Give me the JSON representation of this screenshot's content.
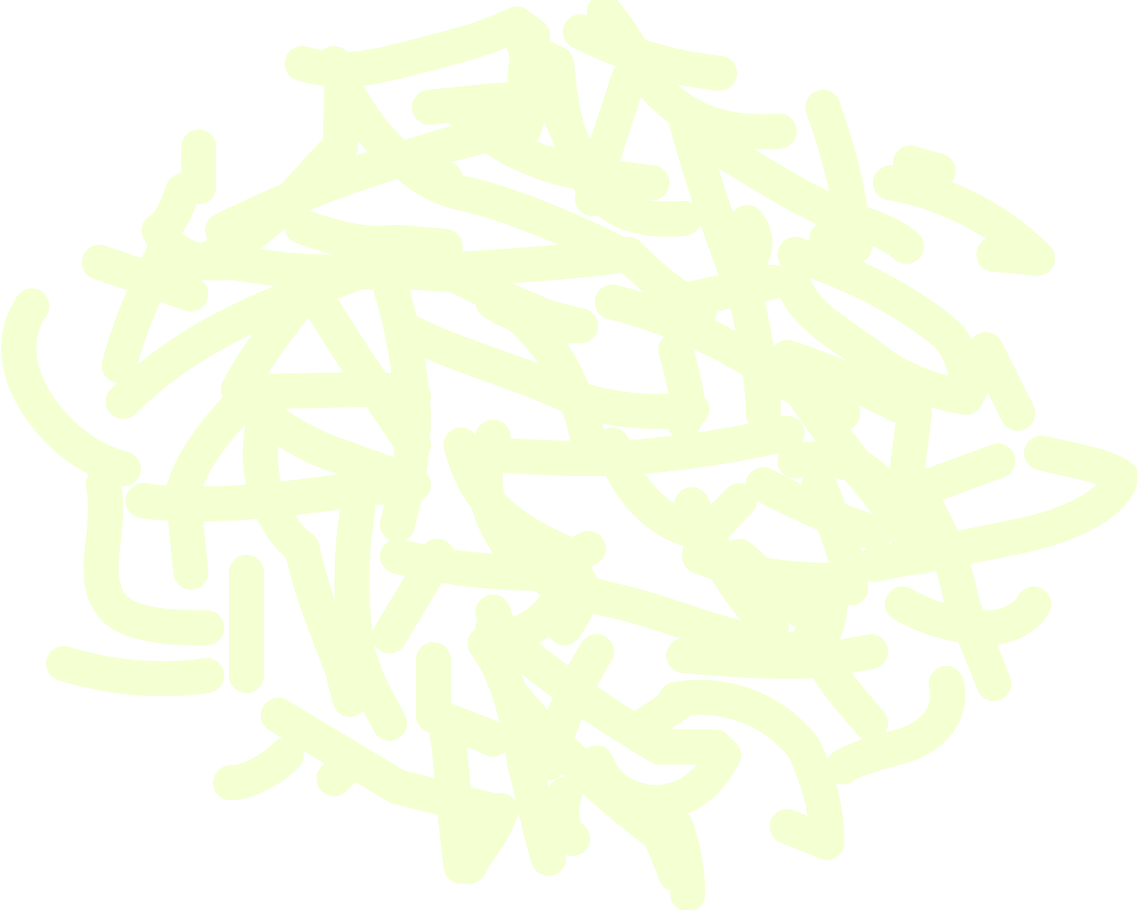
{
  "scribble": {
    "description": "",
    "stroke_color": "#F4FFD2",
    "background_color": "#FFFFFF"
  }
}
